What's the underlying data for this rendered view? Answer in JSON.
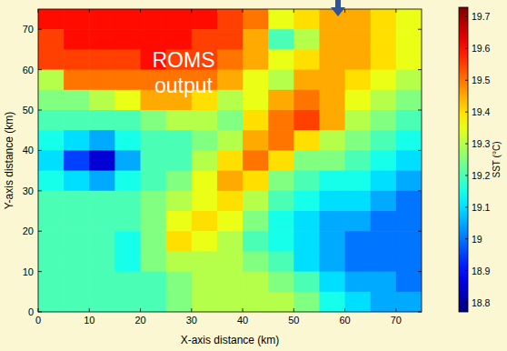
{
  "chart_data": {
    "type": "heatmap",
    "x_label": "X-axis distance (km)",
    "y_label": "Y-axis distance (km)",
    "annotation_lines": [
      "ROMS",
      "output"
    ],
    "xlim": [
      0,
      75
    ],
    "ylim": [
      0,
      75
    ],
    "xticks": [
      0,
      10,
      20,
      30,
      40,
      50,
      60,
      70
    ],
    "yticks": [
      0,
      10,
      20,
      30,
      40,
      50,
      60,
      70
    ],
    "x": [
      2.5,
      7.5,
      12.5,
      17.5,
      22.5,
      27.5,
      32.5,
      37.5,
      42.5,
      47.5,
      52.5,
      57.5,
      62.5,
      67.5,
      72.5
    ],
    "y": [
      72.5,
      67.5,
      62.5,
      57.5,
      52.5,
      47.5,
      42.5,
      37.5,
      32.5,
      27.5,
      22.5,
      17.5,
      12.5,
      7.5,
      2.5
    ],
    "z": [
      [
        19.6,
        19.6,
        19.6,
        19.6,
        19.6,
        19.6,
        19.6,
        19.55,
        19.5,
        19.35,
        19.4,
        19.45,
        19.45,
        19.4,
        19.35
      ],
      [
        19.55,
        19.6,
        19.6,
        19.6,
        19.6,
        19.6,
        19.55,
        19.55,
        19.45,
        19.2,
        19.3,
        19.45,
        19.45,
        19.4,
        19.35
      ],
      [
        19.55,
        19.55,
        19.55,
        19.55,
        19.6,
        19.55,
        19.55,
        19.5,
        19.45,
        19.35,
        19.4,
        19.45,
        19.45,
        19.4,
        19.35
      ],
      [
        19.3,
        19.5,
        19.5,
        19.5,
        19.5,
        19.5,
        19.5,
        19.45,
        19.35,
        19.3,
        19.45,
        19.45,
        19.4,
        19.35,
        19.3
      ],
      [
        19.25,
        19.25,
        19.3,
        19.35,
        19.45,
        19.45,
        19.4,
        19.3,
        19.35,
        19.45,
        19.5,
        19.45,
        19.35,
        19.3,
        19.25
      ],
      [
        19.2,
        19.2,
        19.2,
        19.2,
        19.25,
        19.3,
        19.3,
        19.25,
        19.4,
        19.5,
        19.55,
        19.45,
        19.3,
        19.25,
        19.2
      ],
      [
        19.15,
        19.1,
        19.05,
        19.15,
        19.2,
        19.2,
        19.25,
        19.3,
        19.45,
        19.5,
        19.4,
        19.3,
        19.25,
        19.2,
        19.15
      ],
      [
        19.1,
        18.95,
        18.85,
        19.05,
        19.2,
        19.2,
        19.3,
        19.4,
        19.5,
        19.4,
        19.25,
        19.25,
        19.2,
        19.15,
        19.1
      ],
      [
        19.15,
        19.1,
        19.05,
        19.15,
        19.2,
        19.25,
        19.35,
        19.45,
        19.4,
        19.25,
        19.2,
        19.15,
        19.15,
        19.1,
        19.05
      ],
      [
        19.2,
        19.2,
        19.2,
        19.2,
        19.25,
        19.3,
        19.35,
        19.4,
        19.3,
        19.2,
        19.15,
        19.1,
        19.1,
        19.05,
        19.0
      ],
      [
        19.2,
        19.2,
        19.2,
        19.2,
        19.25,
        19.35,
        19.4,
        19.35,
        19.25,
        19.15,
        19.1,
        19.05,
        19.05,
        19.0,
        19.0
      ],
      [
        19.2,
        19.2,
        19.2,
        19.15,
        19.25,
        19.4,
        19.35,
        19.3,
        19.2,
        19.15,
        19.1,
        19.05,
        19.0,
        19.0,
        19.0
      ],
      [
        19.2,
        19.2,
        19.2,
        19.15,
        19.25,
        19.3,
        19.3,
        19.3,
        19.25,
        19.2,
        19.1,
        19.05,
        19.0,
        19.0,
        19.0
      ],
      [
        19.2,
        19.2,
        19.2,
        19.2,
        19.2,
        19.25,
        19.3,
        19.3,
        19.3,
        19.25,
        19.2,
        19.1,
        19.05,
        19.05,
        19.0
      ],
      [
        19.2,
        19.2,
        19.2,
        19.2,
        19.2,
        19.25,
        19.3,
        19.3,
        19.3,
        19.3,
        19.25,
        19.15,
        19.1,
        19.05,
        19.05
      ]
    ],
    "colorbar_label": "SST (°C)",
    "colorbar_range": [
      18.77,
      19.73
    ],
    "colorbar_ticks": [
      18.8,
      18.9,
      19,
      19.1,
      19.2,
      19.3,
      19.4,
      19.5,
      19.6,
      19.7
    ]
  }
}
